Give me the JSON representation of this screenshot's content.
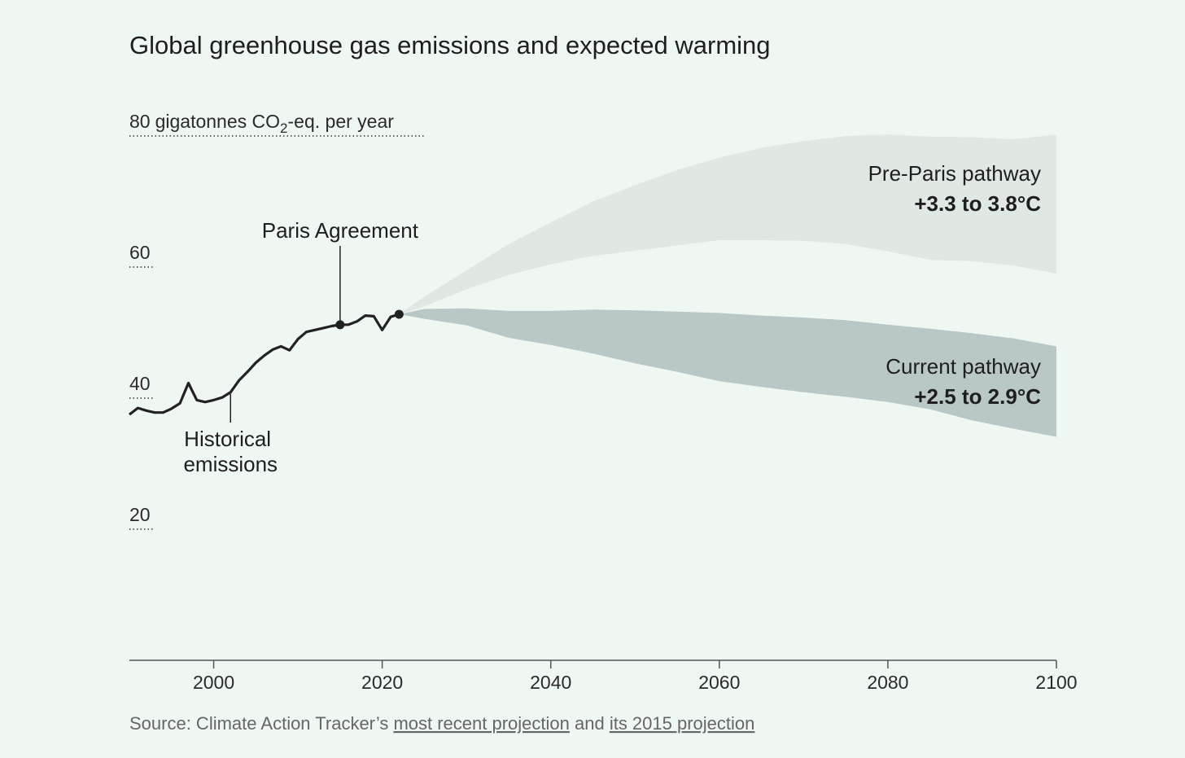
{
  "chart_data": {
    "type": "area",
    "title": "Global greenhouse gas emissions and expected warming",
    "unit_prefix": "gigatonnes CO",
    "unit_sub": "2",
    "unit_suffix": "-eq. per year",
    "ylim": [
      0,
      80
    ],
    "yticks": [
      {
        "value": 80,
        "label": "80"
      },
      {
        "value": 60,
        "label": "60"
      },
      {
        "value": 40,
        "label": "40"
      },
      {
        "value": 20,
        "label": "20"
      }
    ],
    "xlim": [
      1990,
      2100
    ],
    "xticks": [
      2000,
      2020,
      2040,
      2060,
      2080,
      2100
    ],
    "historical": {
      "name": "Historical emissions",
      "label_lines": [
        "Historical",
        "emissions"
      ],
      "label_year": 2002,
      "x": [
        1990,
        1991,
        1992,
        1993,
        1994,
        1995,
        1996,
        1997,
        1998,
        1999,
        2000,
        2001,
        2002,
        2003,
        2004,
        2005,
        2006,
        2007,
        2008,
        2009,
        2010,
        2011,
        2012,
        2013,
        2014,
        2015,
        2016,
        2017,
        2018,
        2019,
        2020,
        2021,
        2022
      ],
      "y": [
        37.5,
        38.5,
        38.1,
        37.8,
        37.8,
        38.4,
        39.2,
        42.3,
        39.7,
        39.4,
        39.7,
        40.1,
        40.9,
        42.7,
        44.0,
        45.4,
        46.5,
        47.4,
        47.9,
        47.3,
        49.0,
        50.1,
        50.4,
        50.7,
        51.0,
        51.2,
        51.2,
        51.7,
        52.6,
        52.5,
        50.4,
        52.4,
        52.8
      ]
    },
    "markers": [
      {
        "year": 2015,
        "value": 51.2
      },
      {
        "year": 2022,
        "value": 52.8
      }
    ],
    "paris": {
      "label": "Paris Agreement",
      "year": 2015
    },
    "pathways": [
      {
        "name": "Pre-Paris pathway",
        "warming": "+3.3 to 3.8°C",
        "color": "#dfe8e3",
        "x": [
          2022,
          2025,
          2030,
          2035,
          2040,
          2045,
          2050,
          2055,
          2060,
          2065,
          2070,
          2075,
          2080,
          2085,
          2090,
          2095,
          2100
        ],
        "upper": [
          52.8,
          55.5,
          59.5,
          63.5,
          66.8,
          70.0,
          72.5,
          74.8,
          76.7,
          78.2,
          79.2,
          80.0,
          80.2,
          79.9,
          79.8,
          79.5,
          80.2
        ],
        "lower": [
          52.8,
          54.0,
          56.6,
          58.8,
          60.4,
          61.7,
          62.5,
          63.3,
          64.1,
          64.1,
          64.0,
          63.5,
          62.4,
          61.1,
          60.9,
          60.2,
          59.0
        ]
      },
      {
        "name": "Current pathway",
        "warming": "+2.5 to 2.9°C",
        "color": "#b9c7c7",
        "x": [
          2022,
          2025,
          2030,
          2035,
          2040,
          2045,
          2050,
          2055,
          2060,
          2065,
          2070,
          2075,
          2080,
          2085,
          2090,
          2095,
          2100
        ],
        "upper": [
          52.8,
          53.6,
          53.7,
          53.3,
          53.3,
          53.5,
          53.4,
          53.2,
          53.0,
          52.6,
          52.3,
          51.9,
          51.2,
          50.6,
          49.9,
          49.1,
          47.9
        ],
        "lower": [
          52.8,
          52.1,
          51.1,
          49.2,
          48.1,
          46.8,
          45.3,
          44.0,
          42.6,
          41.7,
          40.9,
          40.2,
          39.4,
          38.3,
          36.6,
          35.3,
          34.1
        ]
      }
    ]
  },
  "source": {
    "prefix": "Source: Climate Action Tracker’s ",
    "link1": "most recent projection",
    "middle": " and ",
    "link2": "its 2015 projection"
  }
}
